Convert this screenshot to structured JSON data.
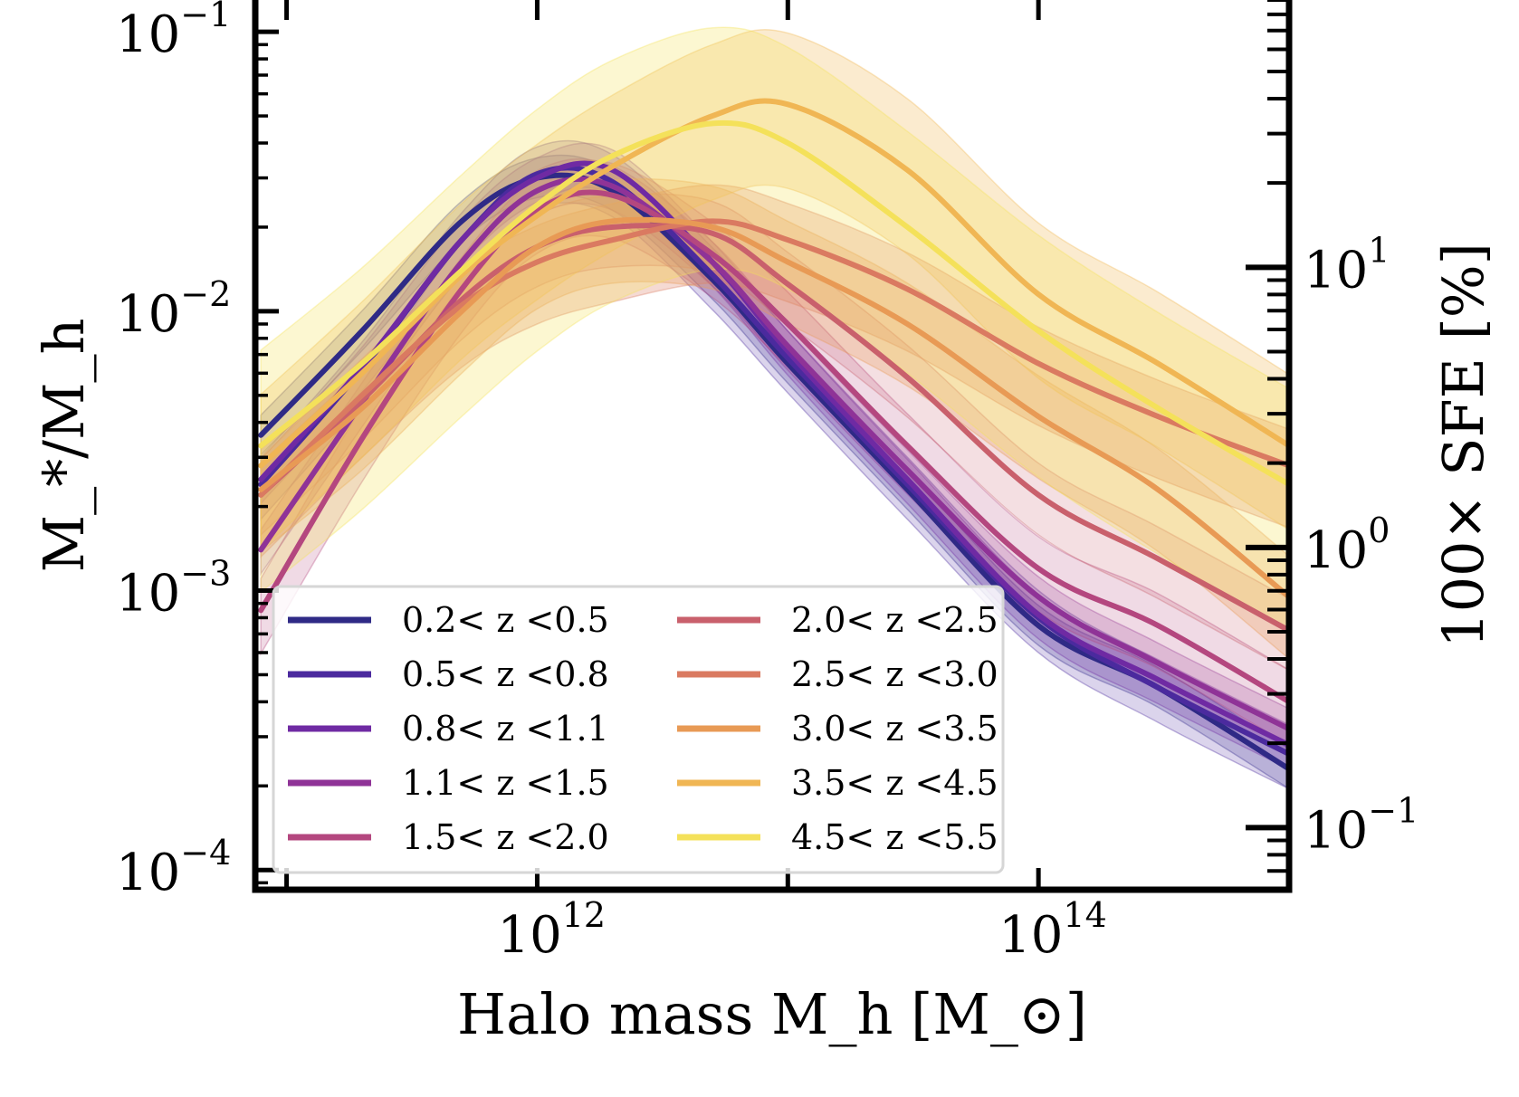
{
  "chart_data": {
    "type": "line",
    "title": "",
    "xlabel": "Halo mass M_h [M_⊙]",
    "ylabel": "M_*/M_h",
    "ylabel_right": "100× SFE [%]",
    "xscale": "log",
    "yscale": "log",
    "yscale_right": "log",
    "xlim": [
      75000000000.0,
      1000000000000000.0
    ],
    "ylim": [
      8.5e-05,
      0.13
    ],
    "ylim_right": [
      0.06,
      90
    ],
    "xticks": [
      {
        "base": "10",
        "exp": "12"
      },
      {
        "base": "10",
        "exp": "14"
      }
    ],
    "yticks": [
      {
        "base": "10",
        "exp": "−1"
      },
      {
        "base": "10",
        "exp": "−2"
      },
      {
        "base": "10",
        "exp": "−3"
      },
      {
        "base": "10",
        "exp": "−4"
      }
    ],
    "yticks_right": [
      {
        "base": "10",
        "exp": "1"
      },
      {
        "base": "10",
        "exp": "0"
      },
      {
        "base": "10",
        "exp": "−1"
      }
    ],
    "grid": false,
    "legend_position": "lower-left",
    "legend_columns": 2,
    "x": [
      79000000000.0,
      200000000000.0,
      500000000000.0,
      1000000000000.0,
      2000000000000.0,
      5000000000000.0,
      10000000000000.0,
      30000000000000.0,
      100000000000000.0,
      300000000000000.0,
      1000000000000000.0
    ],
    "series": [
      {
        "name": "0.2< z <0.5",
        "color": "#2f2a86",
        "values": [
          0.0036,
          0.0085,
          0.021,
          0.03,
          0.027,
          0.013,
          0.0065,
          0.0023,
          0.00075,
          0.00045,
          0.00023
        ],
        "band": [
          0.85,
          1.18
        ]
      },
      {
        "name": "0.5< z <0.8",
        "color": "#4b2a9e",
        "values": [
          0.0024,
          0.0062,
          0.018,
          0.031,
          0.029,
          0.0135,
          0.0068,
          0.0024,
          0.0008,
          0.00045,
          0.00026
        ],
        "band": [
          0.75,
          1.25
        ]
      },
      {
        "name": "0.8< z <1.1",
        "color": "#6f2aa3",
        "values": [
          0.0025,
          0.0063,
          0.018,
          0.03,
          0.032,
          0.015,
          0.0072,
          0.0025,
          0.00082,
          0.00048,
          0.00028
        ],
        "band": [
          0.82,
          1.18
        ]
      },
      {
        "name": "1.1< z <1.5",
        "color": "#8f3397",
        "values": [
          0.0014,
          0.0047,
          0.015,
          0.027,
          0.028,
          0.015,
          0.0075,
          0.0027,
          0.00095,
          0.00055,
          0.00032
        ],
        "band": [
          0.82,
          1.18
        ]
      },
      {
        "name": "1.5< z <2.0",
        "color": "#b4477f",
        "values": [
          0.00085,
          0.0035,
          0.012,
          0.023,
          0.026,
          0.016,
          0.009,
          0.0033,
          0.0012,
          0.00075,
          0.0004
        ],
        "band": [
          0.7,
          1.3
        ]
      },
      {
        "name": "2.0< z <2.5",
        "color": "#c9606c",
        "values": [
          0.0022,
          0.0048,
          0.011,
          0.017,
          0.02,
          0.019,
          0.0125,
          0.0058,
          0.0022,
          0.0013,
          0.00072
        ],
        "band": [
          0.72,
          1.3
        ]
      },
      {
        "name": "2.5< z <3.0",
        "color": "#da7a61",
        "values": [
          0.0022,
          0.005,
          0.0105,
          0.015,
          0.018,
          0.021,
          0.018,
          0.012,
          0.0065,
          0.0042,
          0.0028
        ],
        "band": [
          0.6,
          1.35
        ]
      },
      {
        "name": "3.0< z <3.5",
        "color": "#e89a55",
        "values": [
          0.0023,
          0.0045,
          0.01,
          0.017,
          0.021,
          0.02,
          0.015,
          0.009,
          0.0042,
          0.0023,
          0.00095
        ],
        "band": [
          0.6,
          1.4
        ]
      },
      {
        "name": "3.5< z <4.5",
        "color": "#f0b654",
        "values": [
          0.0028,
          0.006,
          0.0135,
          0.022,
          0.033,
          0.05,
          0.055,
          0.032,
          0.0115,
          0.0065,
          0.0033
        ],
        "band": [
          0.5,
          1.8
        ]
      },
      {
        "name": "4.5< z <5.5",
        "color": "#f4e15a",
        "values": [
          0.0033,
          0.0065,
          0.014,
          0.024,
          0.036,
          0.047,
          0.04,
          0.02,
          0.0085,
          0.0045,
          0.0024
        ],
        "band": [
          0.3,
          2.2
        ]
      }
    ]
  }
}
